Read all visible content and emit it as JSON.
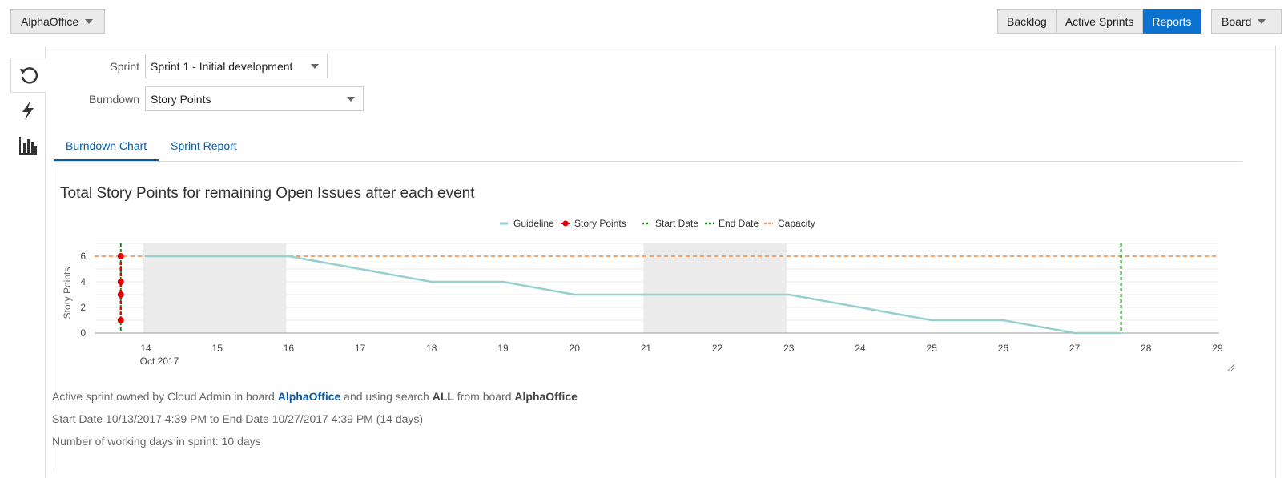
{
  "header": {
    "app_switcher_label": "AlphaOffice",
    "nav_tabs": [
      "Backlog",
      "Active Sprints",
      "Reports"
    ],
    "active_tab": "Reports",
    "board_label": "Board"
  },
  "sidebar": {
    "items": [
      {
        "icon": "refresh-icon",
        "active": true
      },
      {
        "icon": "lightning-icon",
        "active": false
      },
      {
        "icon": "bar-chart-icon",
        "active": false
      }
    ]
  },
  "form": {
    "sprint_label": "Sprint",
    "sprint_value": "Sprint 1 - Initial development",
    "burndown_label": "Burndown",
    "burndown_value": "Story Points"
  },
  "content_tabs": [
    {
      "label": "Burndown Chart",
      "active": true
    },
    {
      "label": "Sprint Report",
      "active": false
    }
  ],
  "chart_data": {
    "type": "line",
    "title": "Total Story Points for remaining Open Issues after each event",
    "ylabel": "Story Points",
    "xlabel": "",
    "x_tick_labels": [
      "14",
      "15",
      "16",
      "17",
      "18",
      "19",
      "20",
      "21",
      "22",
      "23",
      "24",
      "25",
      "26",
      "27",
      "28",
      "29"
    ],
    "x_sublabel": "Oct 2017",
    "xlim": [
      13.6,
      29
    ],
    "y_ticks": [
      0,
      2,
      4,
      6
    ],
    "ylim": [
      0,
      7
    ],
    "grid": true,
    "legend_position": "top-center",
    "legend": [
      {
        "name": "Guideline",
        "color": "#97cfcf",
        "style": "line"
      },
      {
        "name": "Story Points",
        "color": "#e00000",
        "style": "line-dot"
      },
      {
        "name": "Start Date",
        "color": "#1a8a1a",
        "style": "dashed"
      },
      {
        "name": "End Date",
        "color": "#1a8a1a",
        "style": "dashed"
      },
      {
        "name": "Capacity",
        "color": "#f4a46a",
        "style": "dashed"
      }
    ],
    "series": [
      {
        "name": "Guideline",
        "color": "#97cfcf",
        "points": [
          [
            14,
            6
          ],
          [
            16,
            6
          ],
          [
            18,
            4
          ],
          [
            19,
            4
          ],
          [
            20,
            3
          ],
          [
            21,
            3
          ],
          [
            22,
            3
          ],
          [
            23,
            3
          ],
          [
            25,
            1
          ],
          [
            26,
            1
          ],
          [
            27,
            0
          ],
          [
            27.65,
            0
          ]
        ]
      },
      {
        "name": "Story Points",
        "color": "#e00000",
        "points": [
          [
            13.65,
            6
          ],
          [
            13.65,
            4
          ],
          [
            13.65,
            3
          ],
          [
            13.65,
            1
          ]
        ]
      }
    ],
    "start_date_x": 13.65,
    "end_date_x": 27.65,
    "capacity_y": 6,
    "non_working_bands": [
      [
        14,
        16
      ],
      [
        21,
        23
      ]
    ]
  },
  "info": {
    "line1_prefix": "Active sprint owned by Cloud Admin in board ",
    "line1_board": "AlphaOffice",
    "line1_mid": " and using search ",
    "line1_search": "ALL",
    "line1_from": " from board ",
    "line1_board2": "AlphaOffice",
    "line2": "Start Date 10/13/2017 4:39 PM to End Date 10/27/2017 4:39 PM (14 days)",
    "line3": "Number of working days in sprint: 10 days"
  }
}
